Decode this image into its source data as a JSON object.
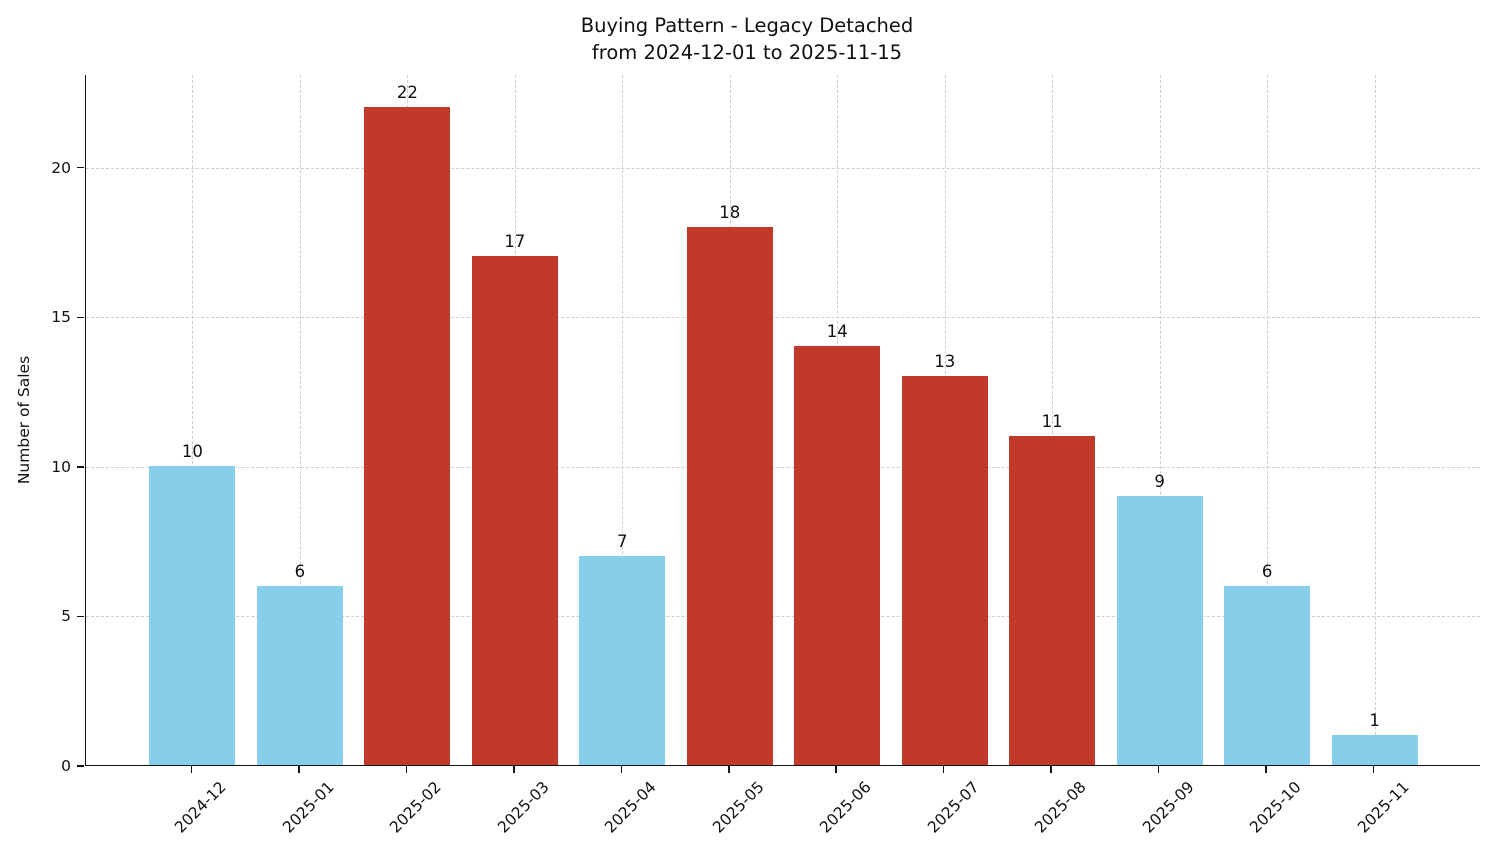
{
  "chart_data": {
    "type": "bar",
    "title": "Buying Pattern - Legacy Detached",
    "subtitle": "from 2024-12-01 to 2025-11-15",
    "xlabel": "",
    "ylabel": "Number of Sales",
    "categories": [
      "2024-12",
      "2025-01",
      "2025-02",
      "2025-03",
      "2025-04",
      "2025-05",
      "2025-06",
      "2025-07",
      "2025-08",
      "2025-09",
      "2025-10",
      "2025-11"
    ],
    "values": [
      10,
      6,
      22,
      17,
      7,
      18,
      14,
      13,
      11,
      9,
      6,
      1
    ],
    "bar_colors": [
      "#87CEEB",
      "#87CEEB",
      "#C0392B",
      "#C0392B",
      "#87CEEB",
      "#C0392B",
      "#C0392B",
      "#C0392B",
      "#C0392B",
      "#87CEEB",
      "#87CEEB",
      "#87CEEB"
    ],
    "colors": {
      "low_bar": "#87CEEB",
      "high_bar": "#C0392B",
      "grid": "#cdcdcd",
      "axis": "#111111",
      "background": "#ffffff"
    },
    "yticks": [
      0,
      5,
      10,
      15,
      20
    ],
    "ylim": [
      0,
      23.1
    ],
    "bar_band_width": 0.8,
    "grid": {
      "style": "dashed",
      "horizontal": true,
      "vertical": true
    },
    "legend": "none",
    "xtick_rotation_deg": 45
  }
}
